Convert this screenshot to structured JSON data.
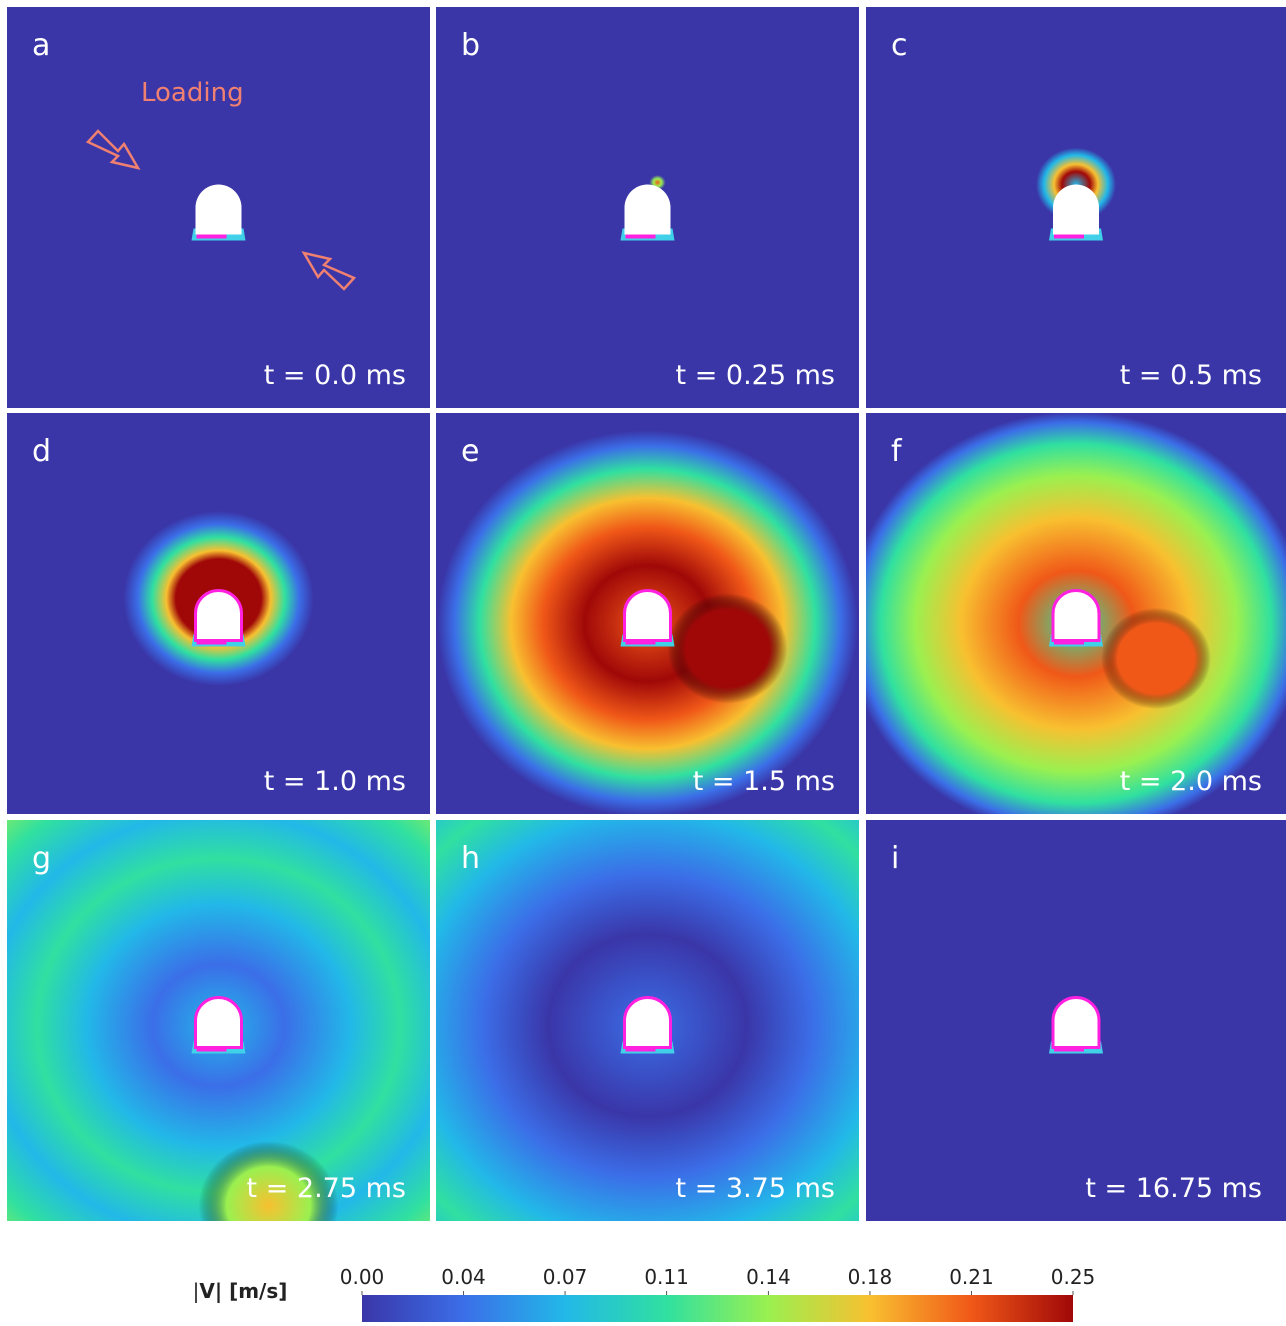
{
  "panels": [
    {
      "label": "a",
      "time": "t = 0.0 ms"
    },
    {
      "label": "b",
      "time": "t = 0.25 ms"
    },
    {
      "label": "c",
      "time": "t = 0.5 ms"
    },
    {
      "label": "d",
      "time": "t = 1.0 ms"
    },
    {
      "label": "e",
      "time": "t = 1.5 ms"
    },
    {
      "label": "f",
      "time": "t = 2.0 ms"
    },
    {
      "label": "g",
      "time": "t = 2.75 ms"
    },
    {
      "label": "h",
      "time": "t = 3.75 ms"
    },
    {
      "label": "i",
      "time": "t = 16.75 ms"
    }
  ],
  "annotation": "Loading",
  "chart_data": {
    "type": "colorbar",
    "label_prefix": "|",
    "label_bold": "V",
    "label_suffix": "| [m/s]",
    "xlim": [
      0,
      0.25
    ],
    "xticks": [
      {
        "value": 0,
        "label": "0.00"
      },
      {
        "value": 0.0357,
        "label": "0.04"
      },
      {
        "value": 0.0714,
        "label": "0.07"
      },
      {
        "value": 0.1071,
        "label": "0.11"
      },
      {
        "value": 0.1429,
        "label": "0.14"
      },
      {
        "value": 0.1786,
        "label": "0.18"
      },
      {
        "value": 0.2143,
        "label": "0.21"
      },
      {
        "value": 0.25,
        "label": "0.25"
      }
    ],
    "colors": [
      "#3a36a8",
      "#3b6ee8",
      "#22b8e8",
      "#30e0a0",
      "#9af050",
      "#f8c030",
      "#f05818",
      "#a00808"
    ]
  }
}
